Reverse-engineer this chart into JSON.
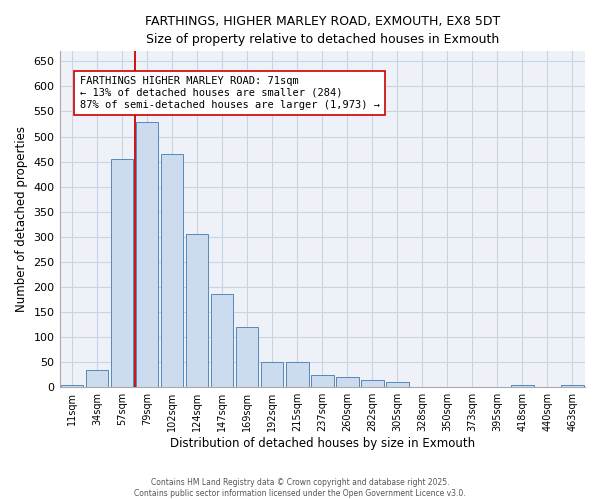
{
  "title1": "FARTHINGS, HIGHER MARLEY ROAD, EXMOUTH, EX8 5DT",
  "title2": "Size of property relative to detached houses in Exmouth",
  "xlabel": "Distribution of detached houses by size in Exmouth",
  "ylabel": "Number of detached properties",
  "bin_labels": [
    "11sqm",
    "34sqm",
    "57sqm",
    "79sqm",
    "102sqm",
    "124sqm",
    "147sqm",
    "169sqm",
    "192sqm",
    "215sqm",
    "237sqm",
    "260sqm",
    "282sqm",
    "305sqm",
    "328sqm",
    "350sqm",
    "373sqm",
    "395sqm",
    "418sqm",
    "440sqm",
    "463sqm"
  ],
  "bar_heights": [
    5,
    35,
    455,
    530,
    465,
    305,
    185,
    120,
    50,
    50,
    25,
    20,
    15,
    10,
    0,
    0,
    0,
    0,
    5,
    0,
    5
  ],
  "bar_color": "#ccdcee",
  "bar_edgecolor": "#5588bb",
  "grid_color": "#c8d4e4",
  "background_color": "#eef2f8",
  "vline_color": "#cc0000",
  "vline_pos": 2.5,
  "annotation_text": "FARTHINGS HIGHER MARLEY ROAD: 71sqm\n← 13% of detached houses are smaller (284)\n87% of semi-detached houses are larger (1,973) →",
  "annotation_box_color": "#ffffff",
  "annotation_box_edgecolor": "#cc0000",
  "annotation_fontsize": 7.5,
  "yticks": [
    0,
    50,
    100,
    150,
    200,
    250,
    300,
    350,
    400,
    450,
    500,
    550,
    600,
    650
  ],
  "ylim": [
    0,
    670
  ],
  "footnote1": "Contains HM Land Registry data © Crown copyright and database right 2025.",
  "footnote2": "Contains public sector information licensed under the Open Government Licence v3.0."
}
